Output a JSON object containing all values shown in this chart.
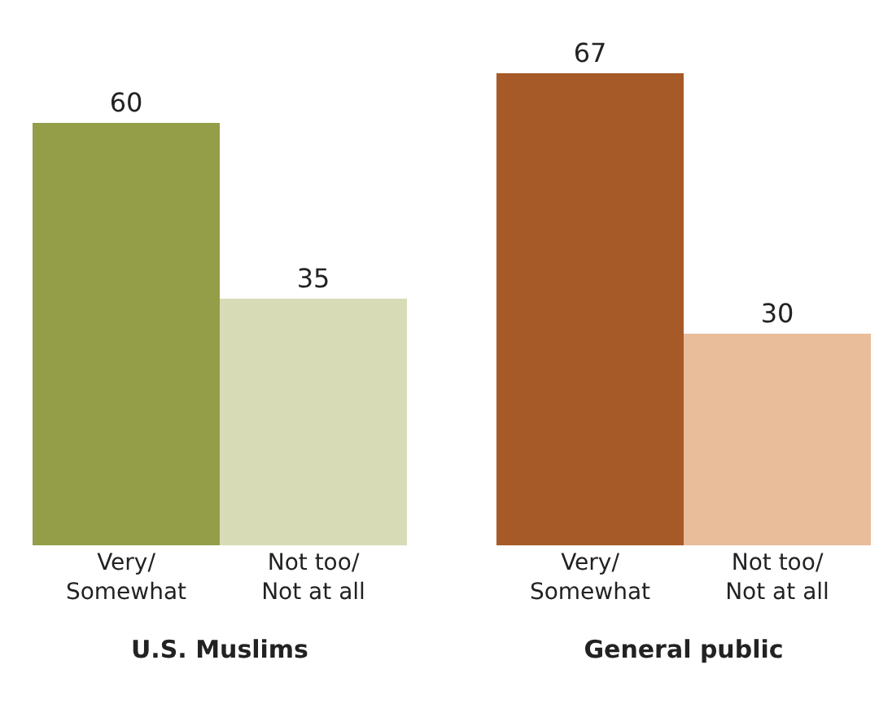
{
  "chart_data": [
    {
      "type": "bar",
      "xlabel": "U.S. Muslims",
      "categories": [
        "Very/ Somewhat",
        "Not too/ Not at all"
      ],
      "values": [
        60,
        35
      ],
      "colors": [
        "#949d48",
        "#d7dcb6"
      ],
      "data_labels": true
    },
    {
      "type": "bar",
      "xlabel": "General public",
      "categories": [
        "Very/ Somewhat",
        "Not too/ Not at all"
      ],
      "values": [
        67,
        30
      ],
      "colors": [
        "#a65a27",
        "#e9bc9a"
      ],
      "data_labels": true
    }
  ]
}
